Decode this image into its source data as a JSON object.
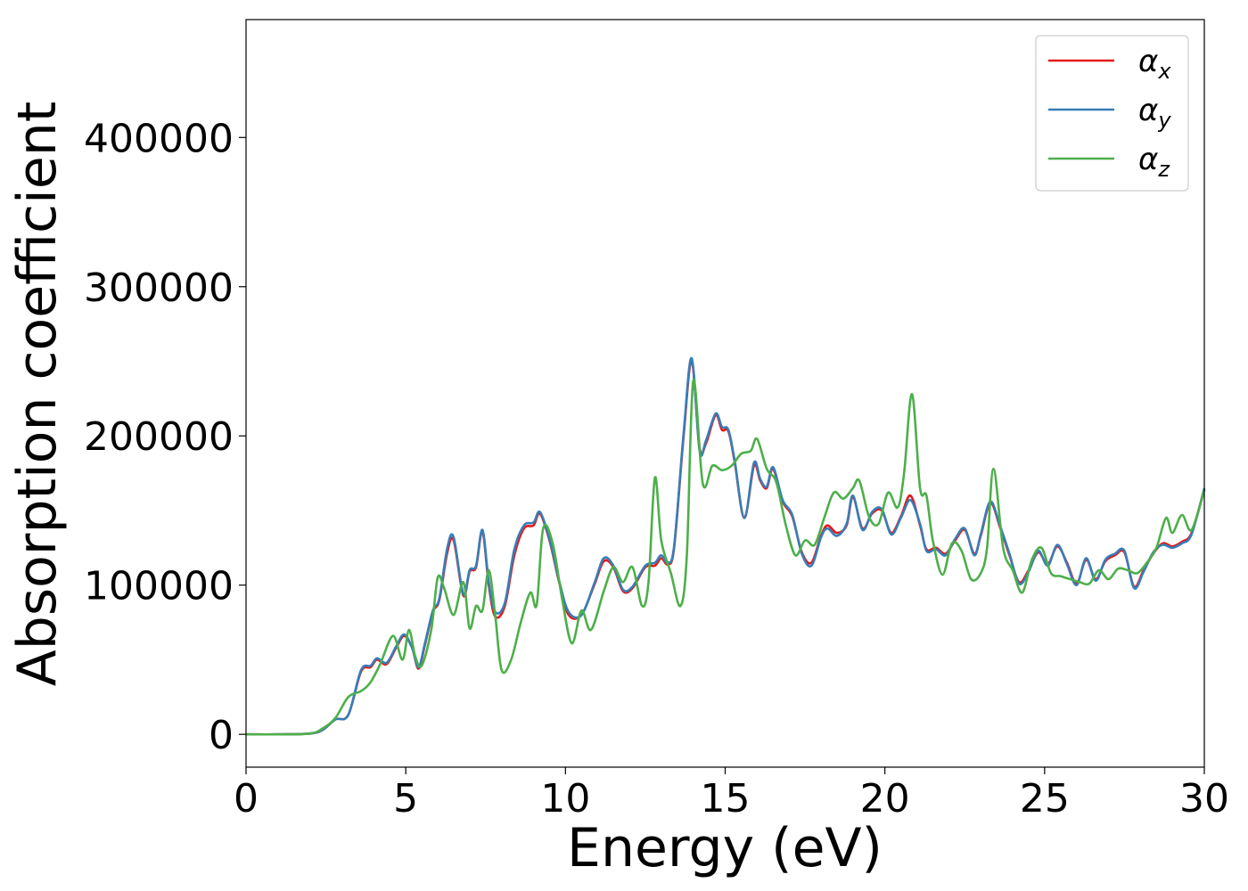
{
  "chart_data": {
    "type": "line",
    "title": "",
    "xlabel": "Energy (eV)",
    "ylabel": "Absorption coefficient",
    "xlim": [
      0,
      30
    ],
    "ylim": [
      -22000,
      479000
    ],
    "xticks": [
      0,
      5,
      10,
      15,
      20,
      25,
      30
    ],
    "xtick_labels": [
      "0",
      "5",
      "10",
      "15",
      "20",
      "25",
      "30"
    ],
    "yticks": [
      0,
      100000,
      200000,
      300000,
      400000
    ],
    "ytick_labels": [
      "0",
      "100000",
      "200000",
      "300000",
      "400000"
    ],
    "grid": false,
    "legend_position": "top-right",
    "series": [
      {
        "name": "αx",
        "legend_base": "α",
        "legend_sub": "x",
        "color": "#e41a1c",
        "x": [
          0,
          1,
          2,
          2.4,
          2.8,
          3.2,
          3.6,
          3.9,
          4.1,
          4.4,
          4.7,
          4.95,
          5.2,
          5.4,
          5.6,
          5.85,
          6.05,
          6.3,
          6.5,
          6.8,
          7.0,
          7.2,
          7.4,
          7.6,
          7.8,
          8.1,
          8.4,
          8.7,
          9.0,
          9.2,
          9.5,
          9.8,
          10.1,
          10.5,
          10.9,
          11.2,
          11.5,
          11.8,
          12.1,
          12.5,
          12.8,
          13.0,
          13.2,
          13.4,
          13.7,
          13.95,
          14.2,
          14.4,
          14.7,
          14.9,
          15.1,
          15.3,
          15.6,
          15.9,
          16.1,
          16.3,
          16.5,
          16.8,
          17.1,
          17.4,
          17.7,
          18.0,
          18.2,
          18.5,
          18.8,
          19.0,
          19.3,
          19.6,
          19.9,
          20.2,
          20.5,
          20.8,
          21.1,
          21.3,
          21.6,
          21.9,
          22.2,
          22.5,
          22.8,
          23.0,
          23.3,
          23.6,
          23.9,
          24.2,
          24.5,
          24.8,
          25.1,
          25.4,
          25.7,
          26.0,
          26.3,
          26.6,
          26.9,
          27.2,
          27.5,
          27.8,
          28.1,
          28.4,
          28.7,
          29.0,
          29.3,
          29.6,
          30.0
        ],
        "values": [
          0,
          0,
          500,
          3000,
          10000,
          13000,
          42000,
          45000,
          50000,
          47000,
          58000,
          66000,
          58000,
          44000,
          60000,
          82000,
          90000,
          122000,
          130000,
          93000,
          109000,
          112000,
          136000,
          100000,
          79000,
          86000,
          120000,
          138000,
          140000,
          148000,
          130000,
          102000,
          80000,
          80000,
          100000,
          116000,
          112000,
          96000,
          98000,
          112000,
          113000,
          118000,
          114000,
          125000,
          200000,
          250000,
          192000,
          195000,
          214000,
          204000,
          203000,
          182000,
          145000,
          180000,
          170000,
          165000,
          178000,
          156000,
          146000,
          122000,
          115000,
          133000,
          140000,
          135000,
          140000,
          159000,
          138000,
          148000,
          150000,
          135000,
          146000,
          160000,
          140000,
          124000,
          125000,
          121000,
          130000,
          137000,
          121000,
          133000,
          155000,
          139000,
          120000,
          102000,
          110000,
          122000,
          114000,
          126000,
          115000,
          101000,
          117000,
          104000,
          116000,
          120000,
          122000,
          99000,
          110000,
          121000,
          128000,
          126000,
          129000,
          135000,
          164000
        ]
      },
      {
        "name": "αy",
        "legend_base": "α",
        "legend_sub": "y",
        "color": "#377eb8",
        "x": [
          0,
          1,
          2,
          2.4,
          2.8,
          3.2,
          3.6,
          3.9,
          4.1,
          4.4,
          4.7,
          4.95,
          5.2,
          5.4,
          5.6,
          5.85,
          6.05,
          6.3,
          6.5,
          6.8,
          7.0,
          7.2,
          7.4,
          7.6,
          7.8,
          8.1,
          8.4,
          8.7,
          9.0,
          9.2,
          9.5,
          9.8,
          10.1,
          10.5,
          10.9,
          11.2,
          11.5,
          11.8,
          12.1,
          12.5,
          12.8,
          13.0,
          13.2,
          13.4,
          13.7,
          13.95,
          14.2,
          14.4,
          14.7,
          14.9,
          15.1,
          15.3,
          15.6,
          15.9,
          16.1,
          16.3,
          16.5,
          16.8,
          17.1,
          17.4,
          17.7,
          18.0,
          18.2,
          18.5,
          18.8,
          19.0,
          19.3,
          19.6,
          19.9,
          20.2,
          20.5,
          20.8,
          21.1,
          21.3,
          21.6,
          21.9,
          22.2,
          22.5,
          22.8,
          23.0,
          23.3,
          23.6,
          23.9,
          24.2,
          24.5,
          24.8,
          25.1,
          25.4,
          25.7,
          26.0,
          26.3,
          26.6,
          26.9,
          27.2,
          27.5,
          27.8,
          28.1,
          28.4,
          28.7,
          29.0,
          29.3,
          29.6,
          30.0
        ],
        "values": [
          0,
          0,
          500,
          3000,
          10000,
          13000,
          43000,
          46000,
          51000,
          48000,
          59000,
          67000,
          58000,
          45000,
          61000,
          83000,
          91000,
          125000,
          132000,
          94000,
          110000,
          113000,
          137000,
          102000,
          82000,
          88000,
          124000,
          140000,
          142000,
          149000,
          131000,
          103000,
          82000,
          80000,
          101000,
          118000,
          113000,
          97000,
          99000,
          113000,
          115000,
          120000,
          115000,
          126000,
          202000,
          252000,
          190000,
          197000,
          215000,
          206000,
          204000,
          183000,
          145000,
          182000,
          171000,
          166000,
          179000,
          157000,
          147000,
          121000,
          113000,
          132000,
          138000,
          133000,
          141000,
          160000,
          137000,
          149000,
          151000,
          134000,
          145000,
          157000,
          141000,
          123000,
          124000,
          120000,
          131000,
          138000,
          120000,
          134000,
          156000,
          140000,
          121000,
          101000,
          109000,
          123000,
          113000,
          127000,
          114000,
          100000,
          118000,
          103000,
          117000,
          121000,
          123000,
          98000,
          109000,
          122000,
          127000,
          125000,
          128000,
          134000,
          165000
        ]
      },
      {
        "name": "αz",
        "legend_base": "α",
        "legend_sub": "z",
        "color": "#4daf4a",
        "x": [
          0,
          1,
          2,
          2.4,
          2.8,
          3.2,
          3.6,
          3.9,
          4.2,
          4.6,
          4.9,
          5.1,
          5.3,
          5.5,
          5.8,
          6.0,
          6.2,
          6.5,
          6.8,
          7.0,
          7.2,
          7.4,
          7.6,
          7.8,
          8.0,
          8.3,
          8.6,
          8.9,
          9.1,
          9.3,
          9.6,
          9.9,
          10.2,
          10.5,
          10.8,
          11.2,
          11.5,
          11.8,
          12.1,
          12.4,
          12.6,
          12.8,
          13.0,
          13.3,
          13.6,
          13.8,
          14.0,
          14.3,
          14.6,
          14.9,
          15.2,
          15.5,
          15.8,
          16.0,
          16.3,
          16.6,
          16.9,
          17.2,
          17.5,
          17.8,
          18.1,
          18.4,
          18.7,
          19.0,
          19.2,
          19.5,
          19.8,
          20.1,
          20.4,
          20.6,
          20.85,
          21.1,
          21.3,
          21.5,
          21.8,
          22.1,
          22.4,
          22.7,
          23.0,
          23.2,
          23.4,
          23.7,
          24.0,
          24.3,
          24.6,
          24.9,
          25.2,
          25.5,
          25.8,
          26.1,
          26.4,
          26.7,
          27.0,
          27.3,
          27.6,
          27.9,
          28.2,
          28.5,
          28.8,
          29.0,
          29.3,
          29.6,
          30.0
        ],
        "values": [
          0,
          0,
          500,
          4000,
          11000,
          25000,
          29000,
          35000,
          47000,
          66000,
          50000,
          70000,
          52000,
          46000,
          70000,
          105000,
          98000,
          80000,
          102000,
          71000,
          86000,
          83000,
          110000,
          80000,
          43000,
          50000,
          75000,
          95000,
          87000,
          138000,
          128000,
          90000,
          61000,
          83000,
          70000,
          96000,
          112000,
          102000,
          112000,
          86000,
          102000,
          172000,
          130000,
          108000,
          86000,
          120000,
          237000,
          168000,
          180000,
          177000,
          180000,
          188000,
          190000,
          198000,
          178000,
          169000,
          140000,
          120000,
          130000,
          127000,
          145000,
          162000,
          158000,
          165000,
          170000,
          146000,
          141000,
          162000,
          152000,
          175000,
          228000,
          165000,
          160000,
          130000,
          107000,
          128000,
          123000,
          104000,
          108000,
          125000,
          178000,
          125000,
          110000,
          95000,
          117000,
          125000,
          108000,
          106000,
          104000,
          102000,
          101000,
          110000,
          104000,
          111000,
          110000,
          108000,
          115000,
          125000,
          145000,
          135000,
          147000,
          137000,
          164000
        ]
      }
    ]
  }
}
